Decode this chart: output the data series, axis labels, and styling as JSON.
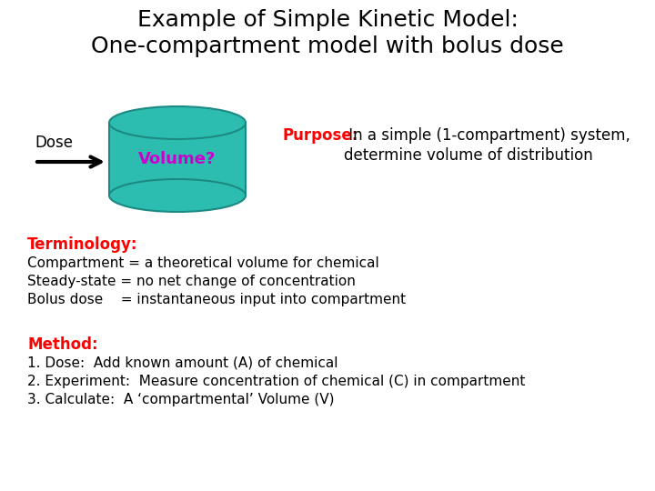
{
  "title_line1": "Example of Simple Kinetic Model:",
  "title_line2": "One-compartment model with bolus dose",
  "title_color": "#000000",
  "title_fontsize": 18,
  "background_color": "#ffffff",
  "cylinder_color": "#2dbdb0",
  "cylinder_edge_color": "#1a8a82",
  "cylinder_label": "Volume?",
  "cylinder_label_color": "#cc00cc",
  "cylinder_label_fontsize": 13,
  "dose_label": "Dose",
  "dose_label_color": "#000000",
  "arrow_color": "#000000",
  "purpose_label": "Purpose:",
  "purpose_label_color": "#ff0000",
  "purpose_text1": " In a simple (1-compartment) system,",
  "purpose_text2": "determine volume of distribution",
  "purpose_text_color": "#000000",
  "terminology_label": "Terminology:",
  "terminology_label_color": "#ff0000",
  "terminology_lines": [
    "Compartment = a theoretical volume for chemical",
    "Steady-state = no net change of concentration",
    "Bolus dose    = instantaneous input into compartment"
  ],
  "terminology_text_color": "#000000",
  "method_label": "Method:",
  "method_label_color": "#ff0000",
  "method_lines": [
    "1. Dose:  Add known amount (A) of chemical",
    "2. Experiment:  Measure concentration of chemical (C) in compartment",
    "3. Calculate:  A ‘compartmental’ Volume (V)"
  ],
  "method_text_color": "#000000",
  "font_family": "Comic Sans MS",
  "body_fontsize": 11,
  "label_fontsize": 11
}
